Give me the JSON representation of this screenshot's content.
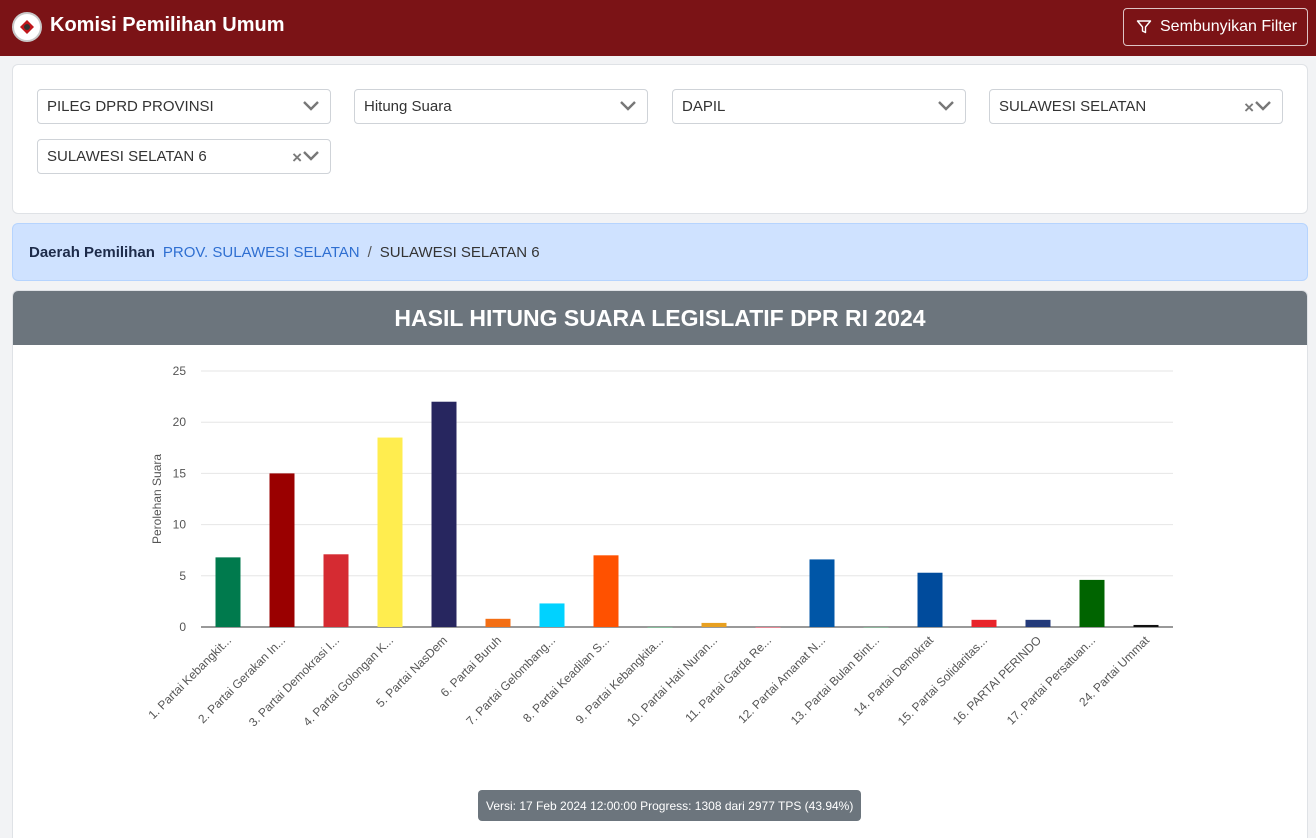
{
  "navbar": {
    "brand": "Komisi Pemilihan Umum",
    "filter_button": "Sembunyikan Filter",
    "bg_color": "#7b1316"
  },
  "filters": [
    {
      "value": "PILEG DPRD PROVINSI",
      "clearable": false
    },
    {
      "value": "Hitung Suara",
      "clearable": false
    },
    {
      "value": "DAPIL",
      "clearable": false
    },
    {
      "value": "SULAWESI SELATAN",
      "clearable": true
    },
    {
      "value": "SULAWESI SELATAN 6",
      "clearable": true
    }
  ],
  "breadcrumb": {
    "label": "Daerah Pemilihan",
    "link": "PROV. SULAWESI SELATAN",
    "separator": "/",
    "current": "SULAWESI SELATAN 6"
  },
  "version": "Versi: 17 Feb 2024 12:00:00 Progress: 1308 dari 2977 TPS (43.94%)",
  "chart_data": {
    "type": "bar",
    "title": "HASIL HITUNG SUARA LEGISLATIF DPR RI 2024",
    "xlabel": "",
    "ylabel": "Perolehan Suara",
    "ylim": [
      0,
      25
    ],
    "yticks": [
      0,
      5,
      10,
      15,
      20,
      25
    ],
    "grid": true,
    "categories": [
      "1. Partai Kebangkit...",
      "2. Partai Gerakan In...",
      "3. Partai Demokrasi I...",
      "4. Partai Golongan K...",
      "5. Partai NasDem",
      "6. Partai Buruh",
      "7. Partai Gelombang...",
      "8. Partai Keadilan S...",
      "9. Partai Kebangkita...",
      "10. Partai Hati Nuran...",
      "11. Partai Garda Re...",
      "12. Partai Amanat N...",
      "13. Partai Bulan Bint...",
      "14. Partai Demokrat",
      "15. Partai Solidaritas...",
      "16. PARTAI PERINDO",
      "17. Partai Persatuan...",
      "24. Partai Ummat"
    ],
    "values": [
      6.8,
      15,
      7.1,
      18.5,
      22,
      0.8,
      2.3,
      7,
      0,
      0.4,
      0,
      6.6,
      0,
      5.3,
      0.7,
      0.7,
      4.6,
      0.2
    ],
    "colors": [
      "#007a4d",
      "#9a0000",
      "#d52b32",
      "#ffed4f",
      "#27265f",
      "#f36e14",
      "#00d2ff",
      "#ff5100",
      "#0f7a3a",
      "#e8a020",
      "#c8102e",
      "#0056a7",
      "#1d6b3a",
      "#004b9c",
      "#e8242a",
      "#233a7a",
      "#006400",
      "#111111"
    ]
  }
}
